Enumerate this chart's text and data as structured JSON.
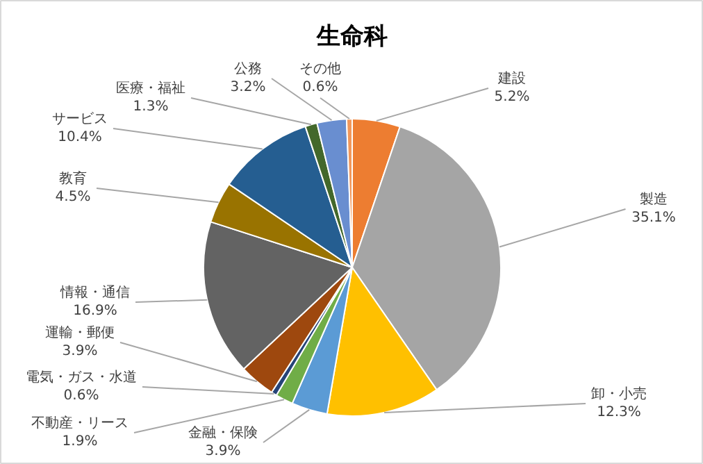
{
  "chart_data": {
    "type": "pie",
    "title": "生命科",
    "categories": [
      "建設",
      "製造",
      "卸・小売",
      "金融・保険",
      "不動産・リース",
      "電気・ガス・水道",
      "運輸・郵便",
      "情報・通信",
      "教育",
      "サービス",
      "医療・福祉",
      "公務",
      "その他"
    ],
    "values": [
      5.2,
      35.1,
      12.3,
      3.9,
      1.9,
      0.6,
      3.9,
      16.9,
      4.5,
      10.4,
      1.3,
      3.2,
      0.6
    ],
    "value_labels": [
      "5.2%",
      "35.1%",
      "12.3%",
      "3.9%",
      "1.9%",
      "0.6%",
      "3.9%",
      "16.9%",
      "4.5%",
      "10.4%",
      "1.3%",
      "3.2%",
      "0.6%"
    ],
    "colors": [
      "#ed7d31",
      "#a5a5a5",
      "#ffc000",
      "#5b9bd5",
      "#70ad47",
      "#264478",
      "#9e480e",
      "#636363",
      "#997300",
      "#255e91",
      "#43682b",
      "#698ed0",
      "#f1975a"
    ]
  }
}
